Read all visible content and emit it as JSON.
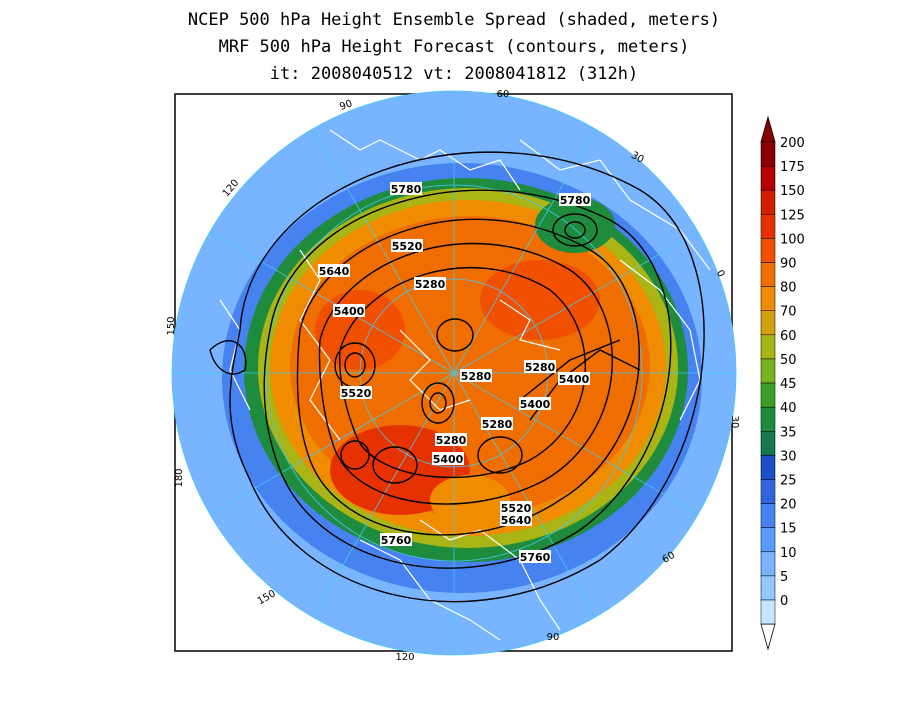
{
  "title": {
    "line1": "NCEP 500 hPa Height Ensemble Spread (shaded, meters)",
    "line2": "MRF 500 hPa Height Forecast (contours, meters)",
    "line3": "it: 2008040512      vt: 2008041812 (312h)"
  },
  "longitude_labels": [
    "60",
    "30",
    "0",
    "30",
    "60",
    "90",
    "120",
    "150",
    "180",
    "150",
    "120",
    "90"
  ],
  "contour_labels": [
    "5780",
    "5780",
    "5520",
    "5640",
    "5280",
    "5400",
    "5280",
    "5400",
    "5520",
    "5280",
    "5400",
    "5280",
    "5280",
    "5400",
    "5520",
    "5640",
    "5760",
    "5760"
  ],
  "colorbar": {
    "levels": [
      "0",
      "5",
      "10",
      "15",
      "20",
      "25",
      "30",
      "35",
      "40",
      "45",
      "50",
      "60",
      "70",
      "80",
      "90",
      "100",
      "125",
      "150",
      "175",
      "200"
    ],
    "colors": [
      "#c8e6ff",
      "#96c8ff",
      "#78b4ff",
      "#5a9bff",
      "#4682f0",
      "#3264dc",
      "#1e50c8",
      "#147850",
      "#1e8c3c",
      "#3ca028",
      "#78b41e",
      "#aab414",
      "#d2a00a",
      "#f08c00",
      "#f06e00",
      "#f05000",
      "#e63200",
      "#d21e00",
      "#b40000",
      "#8c0000"
    ],
    "under_color": "#ffffff",
    "over_color": "#8c0000"
  }
}
